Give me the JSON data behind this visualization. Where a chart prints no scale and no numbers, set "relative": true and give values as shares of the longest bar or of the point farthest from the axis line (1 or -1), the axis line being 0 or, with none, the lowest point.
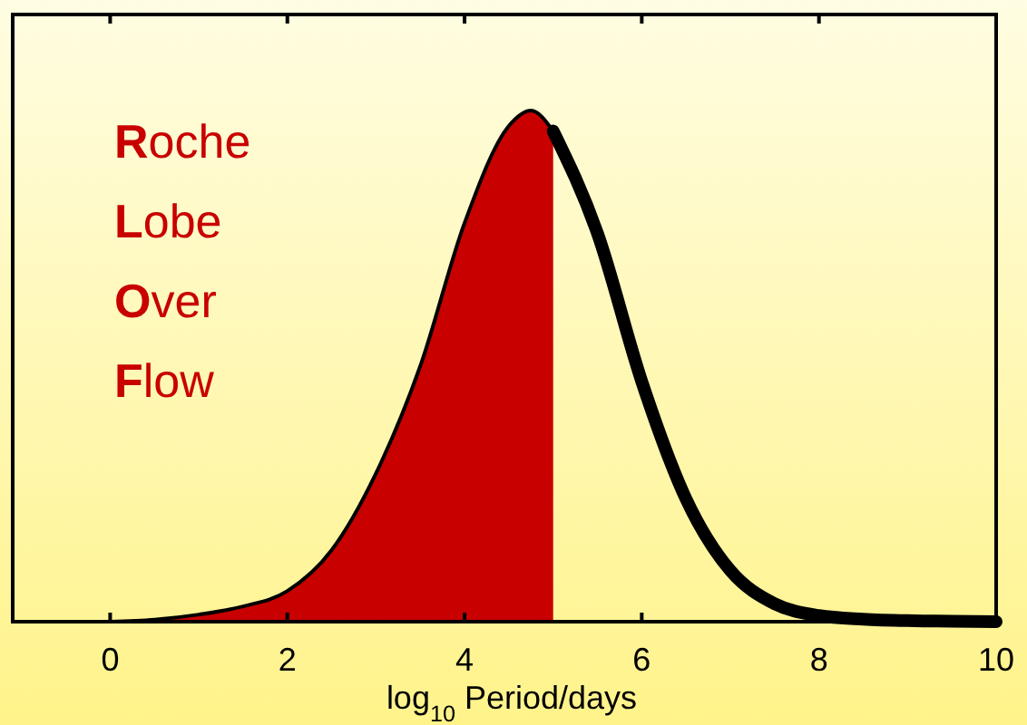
{
  "chart_data": {
    "type": "line",
    "relative": true,
    "xlabel": "log$_{10}$ Period/days",
    "xlim": [
      -1.1,
      10
    ],
    "xticks": [
      0,
      2,
      4,
      6,
      8,
      10
    ],
    "grid": false,
    "annotations": [
      "Roche",
      "Lobe",
      "Over",
      "Flow"
    ],
    "series": [
      {
        "type": "area",
        "color": "#c80000",
        "x": [
          0,
          0.5,
          1,
          1.5,
          2,
          2.5,
          3,
          3.5,
          4,
          4.5,
          4.75,
          5
        ],
        "values": [
          0,
          0.004,
          0.014,
          0.03,
          0.06,
          0.14,
          0.29,
          0.5,
          0.78,
          0.97,
          1.0,
          0.96
        ]
      },
      {
        "color": "#000000",
        "x": [
          5,
          5.5,
          6,
          6.5,
          7,
          7.5,
          8,
          8.5,
          9,
          9.5,
          10
        ],
        "values": [
          0.96,
          0.76,
          0.47,
          0.24,
          0.1,
          0.035,
          0.012,
          0.005,
          0.002,
          0.001,
          0
        ]
      }
    ]
  }
}
